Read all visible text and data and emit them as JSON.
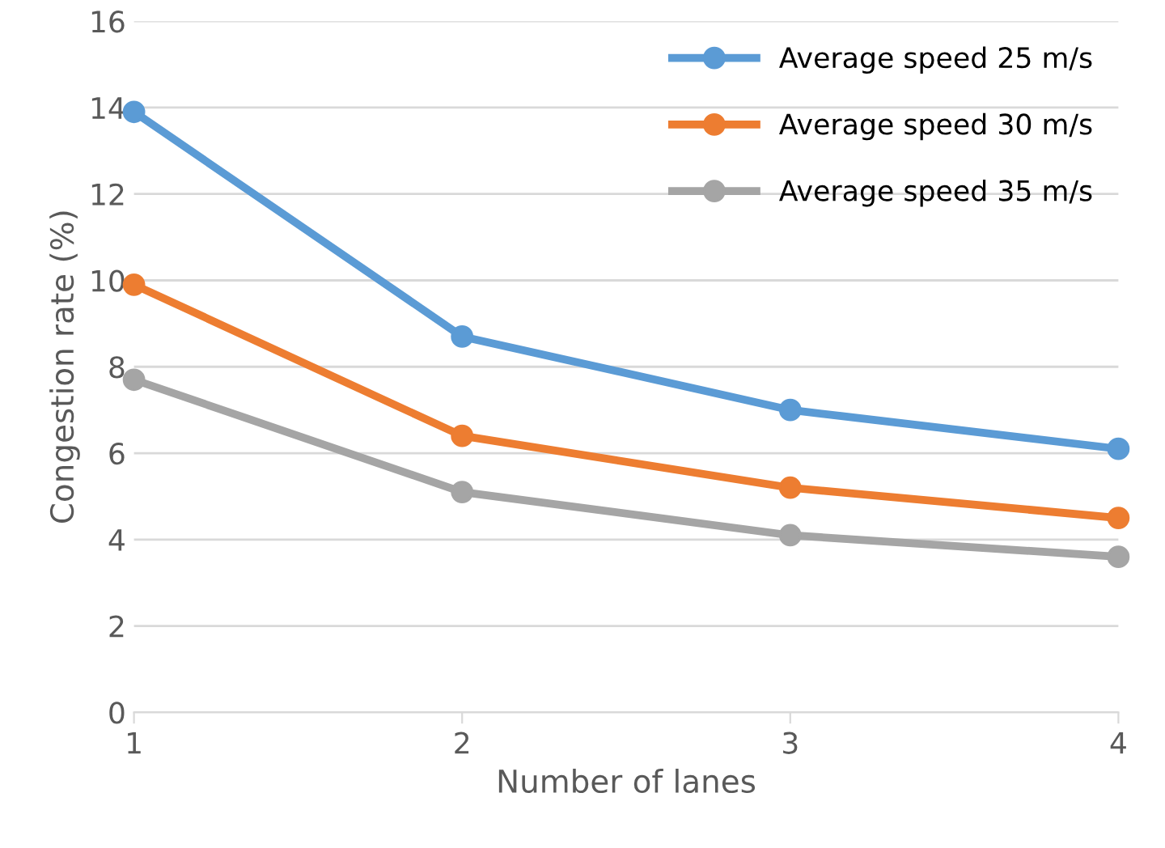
{
  "chart_data": {
    "type": "line",
    "xlabel": "Number of lanes",
    "ylabel": "Congestion rate (%)",
    "x": [
      1,
      2,
      3,
      4
    ],
    "series": [
      {
        "name": "Average speed 25 m/s",
        "color": "#5b9bd5",
        "values": [
          13.9,
          8.7,
          7.0,
          6.1
        ]
      },
      {
        "name": "Average speed 30 m/s",
        "color": "#ed7d31",
        "values": [
          9.9,
          6.4,
          5.2,
          4.5
        ]
      },
      {
        "name": "Average speed 35 m/s",
        "color": "#a5a5a5",
        "values": [
          7.7,
          5.1,
          4.1,
          3.6
        ]
      }
    ],
    "xlim": [
      1,
      4
    ],
    "xticks": [
      1,
      2,
      3,
      4
    ],
    "ylim": [
      0,
      16
    ],
    "yticks": [
      0,
      2,
      4,
      6,
      8,
      10,
      12,
      14,
      16
    ],
    "grid": "y",
    "legend": "top right",
    "marker": "circle",
    "line_style": "solid"
  }
}
